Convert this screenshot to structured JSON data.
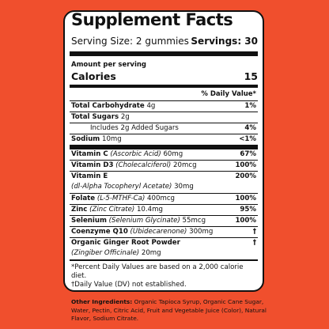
{
  "label": {
    "title": "Supplement Facts",
    "serving_size": "Serving Size: 2 gummies",
    "servings": "Servings: 30",
    "amount_per_serving": "Amount per serving",
    "calories_label": "Calories",
    "calories_value": "15",
    "dv_header": "% Daily Value*",
    "section1": [
      {
        "name": "Total Carbohydrate",
        "amount": "4g",
        "dv": "1%"
      },
      {
        "name": "Total Sugars",
        "amount": "2g"
      },
      {
        "text": "Includes 2g Added Sugars",
        "dv": "4%"
      },
      {
        "name": "Sodium",
        "amount": "10mg",
        "dv": "<1%"
      }
    ],
    "section2": [
      {
        "name": "Vitamin C",
        "form": "(Ascorbic Acid)",
        "amount": "60mg",
        "dv": "67%"
      },
      {
        "name": "Vitamin D3",
        "form": "(Cholecalciferol)",
        "amount": "20mcg",
        "dv": "100%"
      },
      {
        "name": "Vitamin E",
        "form": "(dl-Alpha Tocopheryl Acetate)",
        "amount": "30mg",
        "dv": "200%",
        "two_lines": true
      },
      {
        "name": "Folate",
        "form": "(L-5-MTHF-Ca)",
        "amount": "400mcg",
        "dv": "100%"
      },
      {
        "name": "Zinc",
        "form": "(Zinc Citrate)",
        "amount": "10.4mg",
        "dv": "95%"
      },
      {
        "name": "Selenium",
        "form": "(Selenium Glycinate)",
        "amount": "55mcg",
        "dv": "100%"
      },
      {
        "name": "Coenzyme Q10",
        "form": "(Ubidecarenone)",
        "amount": "300mg",
        "dv": "†"
      },
      {
        "name": "Organic Ginger Root Powder",
        "form": "(Zingiber Officinale)",
        "amount": "20mg",
        "dv": "†",
        "two_lines": true
      }
    ],
    "footnotes": [
      "*Percent Daily Values are based on a 2,000 calorie diet.",
      "†Daily Value (DV) not established."
    ],
    "other_label": "Other Ingredients:",
    "other_text": "Organic Tapioca Syrup, Organic Cane Sugar, Water, Pectin, Citric Acid, Fruit and Vegetable Juice (Color), Natural Flavor, Sodium Citrate."
  }
}
